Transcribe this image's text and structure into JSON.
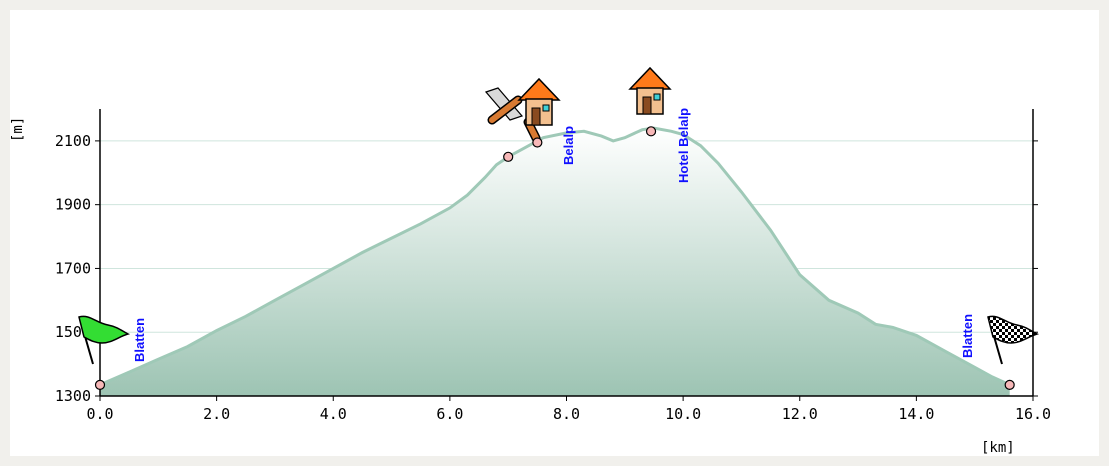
{
  "chart_data": {
    "type": "area",
    "xlabel": "[km]",
    "ylabel": "[m]",
    "xlim": [
      0,
      16
    ],
    "ylim": [
      1300,
      2200
    ],
    "x_ticks": [
      "0.0",
      "2.0",
      "4.0",
      "6.0",
      "8.0",
      "10.0",
      "12.0",
      "14.0",
      "16.0"
    ],
    "y_ticks": [
      "1300",
      "1500",
      "1700",
      "1900",
      "2100"
    ],
    "grid": "horizontal",
    "colors": {
      "fill_top": "#ffffff",
      "fill_bottom": "#9dc4b3",
      "outline": "#9fc9b7",
      "grid": "#cfe5dd",
      "label": "#1010ff",
      "marker_fill": "#f7b8b8"
    },
    "series": [
      {
        "x": [
          0.0,
          0.5,
          1.0,
          1.5,
          2.0,
          2.5,
          3.0,
          3.5,
          4.0,
          4.5,
          5.0,
          5.5,
          6.0,
          6.3,
          6.6,
          6.8,
          7.0,
          7.3,
          7.6,
          8.0,
          8.3,
          8.6,
          8.8,
          9.0,
          9.3,
          9.5,
          9.8,
          10.0,
          10.3,
          10.6,
          11.0,
          11.5,
          12.0,
          12.5,
          13.0,
          13.3,
          13.6,
          14.0,
          14.5,
          15.0,
          15.3,
          15.6
        ],
        "y": [
          1335,
          1375,
          1415,
          1455,
          1505,
          1550,
          1600,
          1650,
          1700,
          1750,
          1795,
          1840,
          1890,
          1930,
          1985,
          2025,
          2050,
          2080,
          2110,
          2125,
          2130,
          2115,
          2100,
          2110,
          2135,
          2140,
          2130,
          2120,
          2085,
          2030,
          1940,
          1820,
          1680,
          1600,
          1560,
          1525,
          1515,
          1490,
          1440,
          1390,
          1360,
          1335
        ]
      }
    ],
    "waypoints": [
      {
        "x": 0.0,
        "y": 1335,
        "label": "Blatten",
        "icon": "start-flag-icon"
      },
      {
        "x": 7.0,
        "y": 2050,
        "label": "",
        "icon": ""
      },
      {
        "x": 7.5,
        "y": 2095,
        "label": "Belalp",
        "icon": "hut-icon"
      },
      {
        "x": 9.45,
        "y": 2130,
        "label": "Hotel Belalp",
        "icon": "hotel-icon"
      },
      {
        "x": 15.6,
        "y": 1335,
        "label": "Blatten",
        "icon": "finish-flag-icon"
      }
    ]
  }
}
